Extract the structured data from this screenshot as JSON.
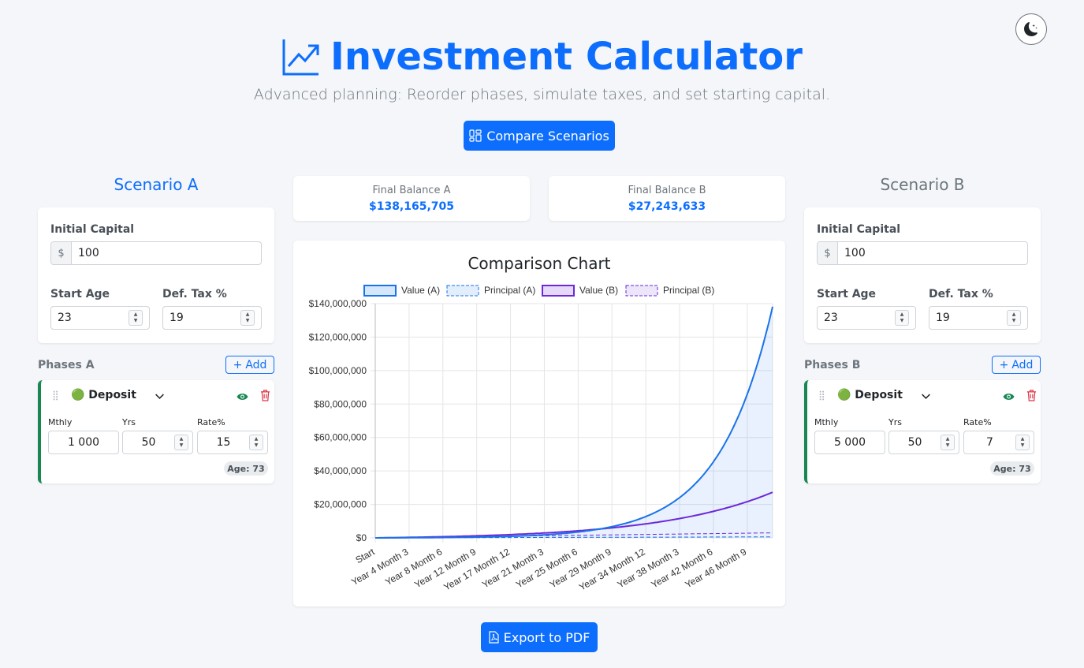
{
  "header": {
    "title": "Investment Calculator",
    "subtitle": "Advanced planning: Reorder phases, simulate taxes, and set starting capital.",
    "compare_label": "Compare Scenarios",
    "export_label": "Export to PDF",
    "theme_icon": "moon-stars-icon"
  },
  "summary": {
    "a_title": "Final Balance A",
    "a_value": "$138,165,705",
    "b_title": "Final Balance B",
    "b_value": "$27,243,633"
  },
  "scenario_a": {
    "heading": "Scenario A",
    "initial_capital_label": "Initial Capital",
    "currency": "$",
    "initial_capital": "100",
    "start_age_label": "Start Age",
    "start_age": "23",
    "tax_label": "Def. Tax %",
    "tax": "19",
    "phases_label": "Phases A",
    "add_label": "Add",
    "phase": {
      "type": "🟢 Deposit",
      "monthly_label": "Mthly",
      "monthly": "1 000",
      "years_label": "Yrs",
      "years": "50",
      "rate_label": "Rate%",
      "rate": "15",
      "age_badge": "Age: 73"
    }
  },
  "scenario_b": {
    "heading": "Scenario B",
    "initial_capital_label": "Initial Capital",
    "currency": "$",
    "initial_capital": "100",
    "start_age_label": "Start Age",
    "start_age": "23",
    "tax_label": "Def. Tax %",
    "tax": "19",
    "phases_label": "Phases B",
    "add_label": "Add",
    "phase": {
      "type": "🟢 Deposit",
      "monthly_label": "Mthly",
      "monthly": "5 000",
      "years_label": "Yrs",
      "years": "50",
      "rate_label": "Rate%",
      "rate": "7",
      "age_badge": "Age: 73"
    }
  },
  "colors": {
    "primary": "#0d6efd",
    "series_a": "#1a73e8",
    "series_b": "#6d28d9",
    "success": "#198754",
    "danger": "#dc3545"
  },
  "chart_data": {
    "type": "line",
    "title": "Comparison Chart",
    "categories": [
      "Start",
      "Year 4 Month 3",
      "Year 8 Month 6",
      "Year 12 Month 9",
      "Year 17 Month 12",
      "Year 21 Month 3",
      "Year 25 Month 6",
      "Year 29 Month 9",
      "Year 34 Month 12",
      "Year 38 Month 3",
      "Year 42 Month 6",
      "Year 46 Month 9"
    ],
    "ylim": [
      0,
      140000000
    ],
    "yticks": [
      "$0",
      "$20,000,000",
      "$40,000,000",
      "$60,000,000",
      "$80,000,000",
      "$100,000,000",
      "$120,000,000",
      "$140,000,000"
    ],
    "legend_position": "top",
    "grid": true,
    "years_total": 50,
    "series": [
      {
        "name": "Value (A)",
        "style": "solid-fill",
        "rate": 15,
        "monthly": 1000,
        "initial": 100,
        "final": 138165705
      },
      {
        "name": "Principal (A)",
        "style": "dashed",
        "monthly": 1000,
        "initial": 100,
        "final": 600100
      },
      {
        "name": "Value (B)",
        "style": "solid",
        "rate": 7,
        "monthly": 5000,
        "initial": 100,
        "final": 27243633
      },
      {
        "name": "Principal (B)",
        "style": "dashed",
        "monthly": 5000,
        "initial": 100,
        "final": 3000100
      }
    ]
  }
}
